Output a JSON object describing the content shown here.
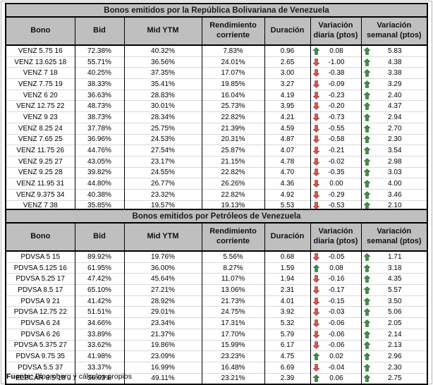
{
  "page": {
    "source_label": "Fuente:",
    "source_text": " Bloomberg y cálculos propios"
  },
  "colors": {
    "header_bg": "#bfbfbf",
    "up_arrow": "#3f9244",
    "up_arrow_border": "#2c6831",
    "down_arrow": "#dc5a4e",
    "down_arrow_border": "#99312a"
  },
  "tables": [
    {
      "title": "Bonos emitidos por la República Bolivariana de Venezuela",
      "headers": [
        "Bono",
        "Bid",
        "Mid YTM",
        "Rendimiento corriente",
        "Duración",
        "Variación diaria (ptos)",
        "Variación semanal (ptos)"
      ],
      "rows": [
        [
          "VENZ 5.75 16",
          "72.38%",
          "40.32%",
          "7.83%",
          "0.96",
          {
            "dir": "up",
            "val": "0.08"
          },
          {
            "dir": "up",
            "val": "5.83"
          }
        ],
        [
          "VENZ 13.625 18",
          "55.71%",
          "36.56%",
          "24.01%",
          "2.65",
          {
            "dir": "down",
            "val": "-1.00"
          },
          {
            "dir": "up",
            "val": "4.38"
          }
        ],
        [
          "VENZ 7 18",
          "40.25%",
          "37.35%",
          "17.07%",
          "3.00",
          {
            "dir": "down",
            "val": "-0.38"
          },
          {
            "dir": "up",
            "val": "3.38"
          }
        ],
        [
          "VENZ 7.75 19",
          "38.33%",
          "35.41%",
          "19.85%",
          "3.27",
          {
            "dir": "down",
            "val": "-0.09"
          },
          {
            "dir": "up",
            "val": "3.29"
          }
        ],
        [
          "VENZ 6 20",
          "36.63%",
          "28.83%",
          "16.04%",
          "4.19",
          {
            "dir": "down",
            "val": "-0.23"
          },
          {
            "dir": "up",
            "val": "2.40"
          }
        ],
        [
          "VENZ 12.75 22",
          "48.73%",
          "30.01%",
          "25.73%",
          "3.95",
          {
            "dir": "down",
            "val": "-0.20"
          },
          {
            "dir": "up",
            "val": "4.37"
          }
        ],
        [
          "VENZ 9 23",
          "38.73%",
          "28.34%",
          "22.82%",
          "4.21",
          {
            "dir": "down",
            "val": "-0.73"
          },
          {
            "dir": "up",
            "val": "2.94"
          }
        ],
        [
          "VENZ 8.25 24",
          "37.78%",
          "25.75%",
          "21.39%",
          "4.59",
          {
            "dir": "down",
            "val": "-0.55"
          },
          {
            "dir": "up",
            "val": "2.70"
          }
        ],
        [
          "VENZ 7.65 25",
          "36.96%",
          "24.53%",
          "20.31%",
          "4.87",
          {
            "dir": "down",
            "val": "-0.58"
          },
          {
            "dir": "up",
            "val": "2.30"
          }
        ],
        [
          "VENZ 11.75 26",
          "44.76%",
          "27.54%",
          "25.87%",
          "4.07",
          {
            "dir": "down",
            "val": "-0.21"
          },
          {
            "dir": "up",
            "val": "3.54"
          }
        ],
        [
          "VENZ 9.25 27",
          "43.05%",
          "23.17%",
          "21.15%",
          "4.78",
          {
            "dir": "down",
            "val": "-0.02"
          },
          {
            "dir": "up",
            "val": "2.98"
          }
        ],
        [
          "VENZ 9.25 28",
          "39.82%",
          "24.55%",
          "22.82%",
          "4.70",
          {
            "dir": "down",
            "val": "-0.35"
          },
          {
            "dir": "up",
            "val": "3.03"
          }
        ],
        [
          "VENZ 11.95 31",
          "44.80%",
          "26.77%",
          "26.26%",
          "4.36",
          {
            "dir": "down",
            "val": "0.00"
          },
          {
            "dir": "up",
            "val": "4.00"
          }
        ],
        [
          "VENZ 9.375 34",
          "40.38%",
          "23.32%",
          "22.82%",
          "4.92",
          {
            "dir": "down",
            "val": "-0.29"
          },
          {
            "dir": "up",
            "val": "3.46"
          }
        ],
        [
          "VENZ 7 38",
          "35.85%",
          "19.57%",
          "19.13%",
          "5.53",
          {
            "dir": "down",
            "val": "-0.53"
          },
          {
            "dir": "up",
            "val": "2.10"
          }
        ]
      ]
    },
    {
      "title": "Bonos emitidos por Petróleos de Venezuela",
      "headers": [
        "Bono",
        "Bid",
        "Mid YTM",
        "Rendimiento corriente",
        "Duración",
        "Variación diaria (ptos)",
        "Variación semanal (ptos)"
      ],
      "rows": [
        [
          "PDVSA 5 15",
          "89.92%",
          "19.76%",
          "5.56%",
          "0.68",
          {
            "dir": "down",
            "val": "-0.05"
          },
          {
            "dir": "up",
            "val": "1.71"
          }
        ],
        [
          "PDVSA 5.125 16",
          "61.95%",
          "36.00%",
          "8.27%",
          "1.59",
          {
            "dir": "up",
            "val": "0.08"
          },
          {
            "dir": "up",
            "val": "3.18"
          }
        ],
        [
          "PDVSA 5.25 17",
          "47.42%",
          "45.64%",
          "11.07%",
          "1.94",
          {
            "dir": "down",
            "val": "-0.16"
          },
          {
            "dir": "up",
            "val": "4.35"
          }
        ],
        [
          "PDVSA 8.5 17",
          "65.10%",
          "27.21%",
          "13.06%",
          "2.31",
          {
            "dir": "down",
            "val": "-0.17"
          },
          {
            "dir": "up",
            "val": "5.57"
          }
        ],
        [
          "PDVSA 9 21",
          "41.42%",
          "28.92%",
          "21.73%",
          "4.01",
          {
            "dir": "down",
            "val": "-0.15"
          },
          {
            "dir": "up",
            "val": "3.50"
          }
        ],
        [
          "PDVSA 12.75 22",
          "51.51%",
          "29.01%",
          "24.75%",
          "3.92",
          {
            "dir": "down",
            "val": "-0.03"
          },
          {
            "dir": "up",
            "val": "5.06"
          }
        ],
        [
          "PDVSA 6 24",
          "34.66%",
          "23.34%",
          "17.31%",
          "5.32",
          {
            "dir": "down",
            "val": "-0.06"
          },
          {
            "dir": "up",
            "val": "2.05"
          }
        ],
        [
          "PDVSA 6 26",
          "33.89%",
          "21.37%",
          "17.70%",
          "5.79",
          {
            "dir": "down",
            "val": "-0.06"
          },
          {
            "dir": "up",
            "val": "2.14"
          }
        ],
        [
          "PDVSA 5.375 27",
          "33.62%",
          "19.86%",
          "15.99%",
          "6.17",
          {
            "dir": "down",
            "val": "-0.06"
          },
          {
            "dir": "up",
            "val": "2.13"
          }
        ],
        [
          "PDVSA 9.75 35",
          "41.98%",
          "23.09%",
          "23.23%",
          "4.75",
          {
            "dir": "up",
            "val": "0.02"
          },
          {
            "dir": "up",
            "val": "2.96"
          }
        ],
        [
          "PDVSA 5.5 37",
          "33.37%",
          "16.99%",
          "16.48%",
          "6.69",
          {
            "dir": "down",
            "val": "-0.04"
          },
          {
            "dir": "up",
            "val": "2.30"
          }
        ],
        [
          "ELECAR 8.5 18",
          "36.63%",
          "49.11%",
          "23.21%",
          "2.39",
          {
            "dir": "up",
            "val": "0.06"
          },
          {
            "dir": "up",
            "val": "2.75"
          }
        ]
      ]
    }
  ]
}
